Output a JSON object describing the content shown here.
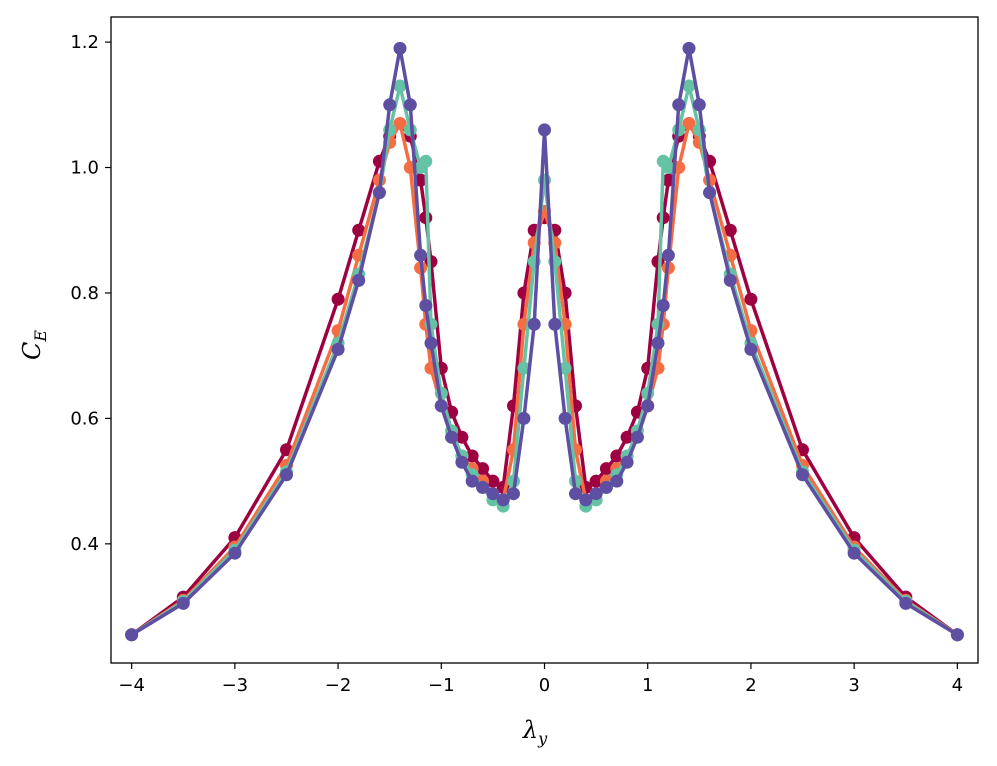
{
  "chart_data": {
    "type": "line",
    "xlabel": "λ",
    "xlabel_sub": "y",
    "ylabel": "C",
    "ylabel_sub": "E",
    "xlim": [
      -4.2,
      4.2
    ],
    "ylim": [
      0.21,
      1.24
    ],
    "xticks": [
      -4,
      -3,
      -2,
      -1,
      0,
      1,
      2,
      3,
      4
    ],
    "xtick_labels": [
      "−4",
      "−3",
      "−2",
      "−1",
      "0",
      "1",
      "2",
      "3",
      "4"
    ],
    "yticks": [
      0.4,
      0.6,
      0.8,
      1.0,
      1.2
    ],
    "ytick_labels": [
      "0.4",
      "0.6",
      "0.8",
      "1.0",
      "1.2"
    ],
    "grid": false,
    "x": [
      -4.0,
      -3.5,
      -3.0,
      -2.5,
      -2.0,
      -1.8,
      -1.6,
      -1.5,
      -1.4,
      -1.3,
      -1.2,
      -1.15,
      -1.1,
      -1.0,
      -0.9,
      -0.8,
      -0.7,
      -0.6,
      -0.5,
      -0.4,
      -0.3,
      -0.2,
      -0.1,
      0.0,
      0.1,
      0.2,
      0.3,
      0.4,
      0.5,
      0.6,
      0.7,
      0.8,
      0.9,
      1.0,
      1.1,
      1.15,
      1.2,
      1.3,
      1.4,
      1.5,
      1.6,
      1.8,
      2.0,
      2.5,
      3.0,
      3.5,
      4.0
    ],
    "series": [
      {
        "color": "#9e0142",
        "values": [
          0.255,
          0.315,
          0.41,
          0.55,
          0.79,
          0.9,
          1.01,
          1.05,
          1.07,
          1.05,
          0.98,
          0.92,
          0.85,
          0.68,
          0.61,
          0.57,
          0.54,
          0.52,
          0.5,
          0.49,
          0.62,
          0.8,
          0.9,
          0.92,
          0.9,
          0.8,
          0.62,
          0.49,
          0.5,
          0.52,
          0.54,
          0.57,
          0.61,
          0.68,
          0.85,
          0.92,
          0.98,
          1.05,
          1.07,
          1.05,
          1.01,
          0.9,
          0.79,
          0.55,
          0.41,
          0.315,
          0.255
        ]
      },
      {
        "color": "#f46d43",
        "values": [
          0.255,
          0.31,
          0.395,
          0.525,
          0.74,
          0.86,
          0.98,
          1.04,
          1.07,
          1.0,
          0.84,
          0.75,
          0.68,
          0.62,
          0.57,
          0.54,
          0.52,
          0.5,
          0.48,
          0.47,
          0.55,
          0.75,
          0.88,
          0.93,
          0.88,
          0.75,
          0.55,
          0.47,
          0.48,
          0.5,
          0.52,
          0.54,
          0.57,
          0.62,
          0.68,
          0.75,
          0.84,
          1.0,
          1.07,
          1.04,
          0.98,
          0.86,
          0.74,
          0.525,
          0.395,
          0.31,
          0.255
        ]
      },
      {
        "color": "#66c2a5",
        "values": [
          0.255,
          0.308,
          0.39,
          0.515,
          0.72,
          0.83,
          0.96,
          1.06,
          1.13,
          1.06,
          1.0,
          1.01,
          0.75,
          0.64,
          0.58,
          0.54,
          0.51,
          0.49,
          0.47,
          0.46,
          0.5,
          0.68,
          0.85,
          0.98,
          0.85,
          0.68,
          0.5,
          0.46,
          0.47,
          0.49,
          0.51,
          0.54,
          0.58,
          0.64,
          0.75,
          1.01,
          1.0,
          1.06,
          1.13,
          1.06,
          0.96,
          0.83,
          0.72,
          0.515,
          0.39,
          0.308,
          0.255
        ]
      },
      {
        "color": "#5e4fa2",
        "values": [
          0.255,
          0.305,
          0.385,
          0.51,
          0.71,
          0.82,
          0.96,
          1.1,
          1.19,
          1.1,
          0.86,
          0.78,
          0.72,
          0.62,
          0.57,
          0.53,
          0.5,
          0.49,
          0.48,
          0.47,
          0.48,
          0.6,
          0.75,
          1.06,
          0.75,
          0.6,
          0.48,
          0.47,
          0.48,
          0.49,
          0.5,
          0.53,
          0.57,
          0.62,
          0.72,
          0.78,
          0.86,
          1.1,
          1.19,
          1.1,
          0.96,
          0.82,
          0.71,
          0.51,
          0.385,
          0.305,
          0.255
        ]
      }
    ]
  }
}
